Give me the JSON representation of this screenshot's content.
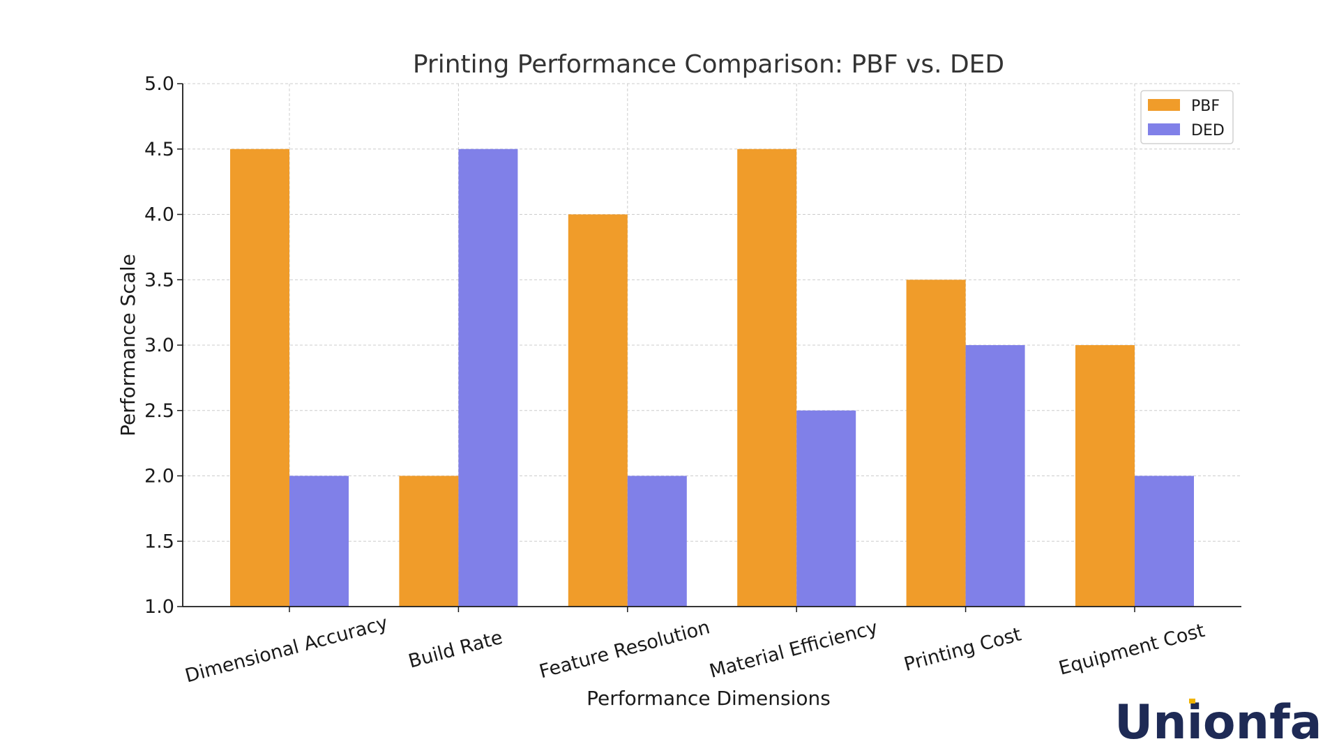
{
  "chart_data": {
    "type": "bar",
    "title": "Printing Performance Comparison: PBF vs. DED",
    "xlabel": "Performance Dimensions",
    "ylabel": "Performance Scale",
    "categories": [
      "Dimensional Accuracy",
      "Build Rate",
      "Feature Resolution",
      "Material Efficiency",
      "Printing Cost",
      "Equipment Cost"
    ],
    "series": [
      {
        "name": "PBF",
        "values": [
          4.5,
          2.0,
          4.0,
          4.5,
          3.5,
          3.0
        ],
        "color": "#f09c2a"
      },
      {
        "name": "DED",
        "values": [
          2.0,
          4.5,
          2.0,
          2.5,
          3.0,
          2.0
        ],
        "color": "#8080e8"
      }
    ],
    "ylim": [
      1.0,
      5.0
    ],
    "yticks": [
      "1.0",
      "1.5",
      "2.0",
      "2.5",
      "3.0",
      "3.5",
      "4.0",
      "4.5",
      "5.0"
    ],
    "grid": true,
    "legend_position": "top-right"
  },
  "logo": {
    "text": "Unionfab",
    "color": "#1e2a55",
    "accent": "#f0b400"
  }
}
